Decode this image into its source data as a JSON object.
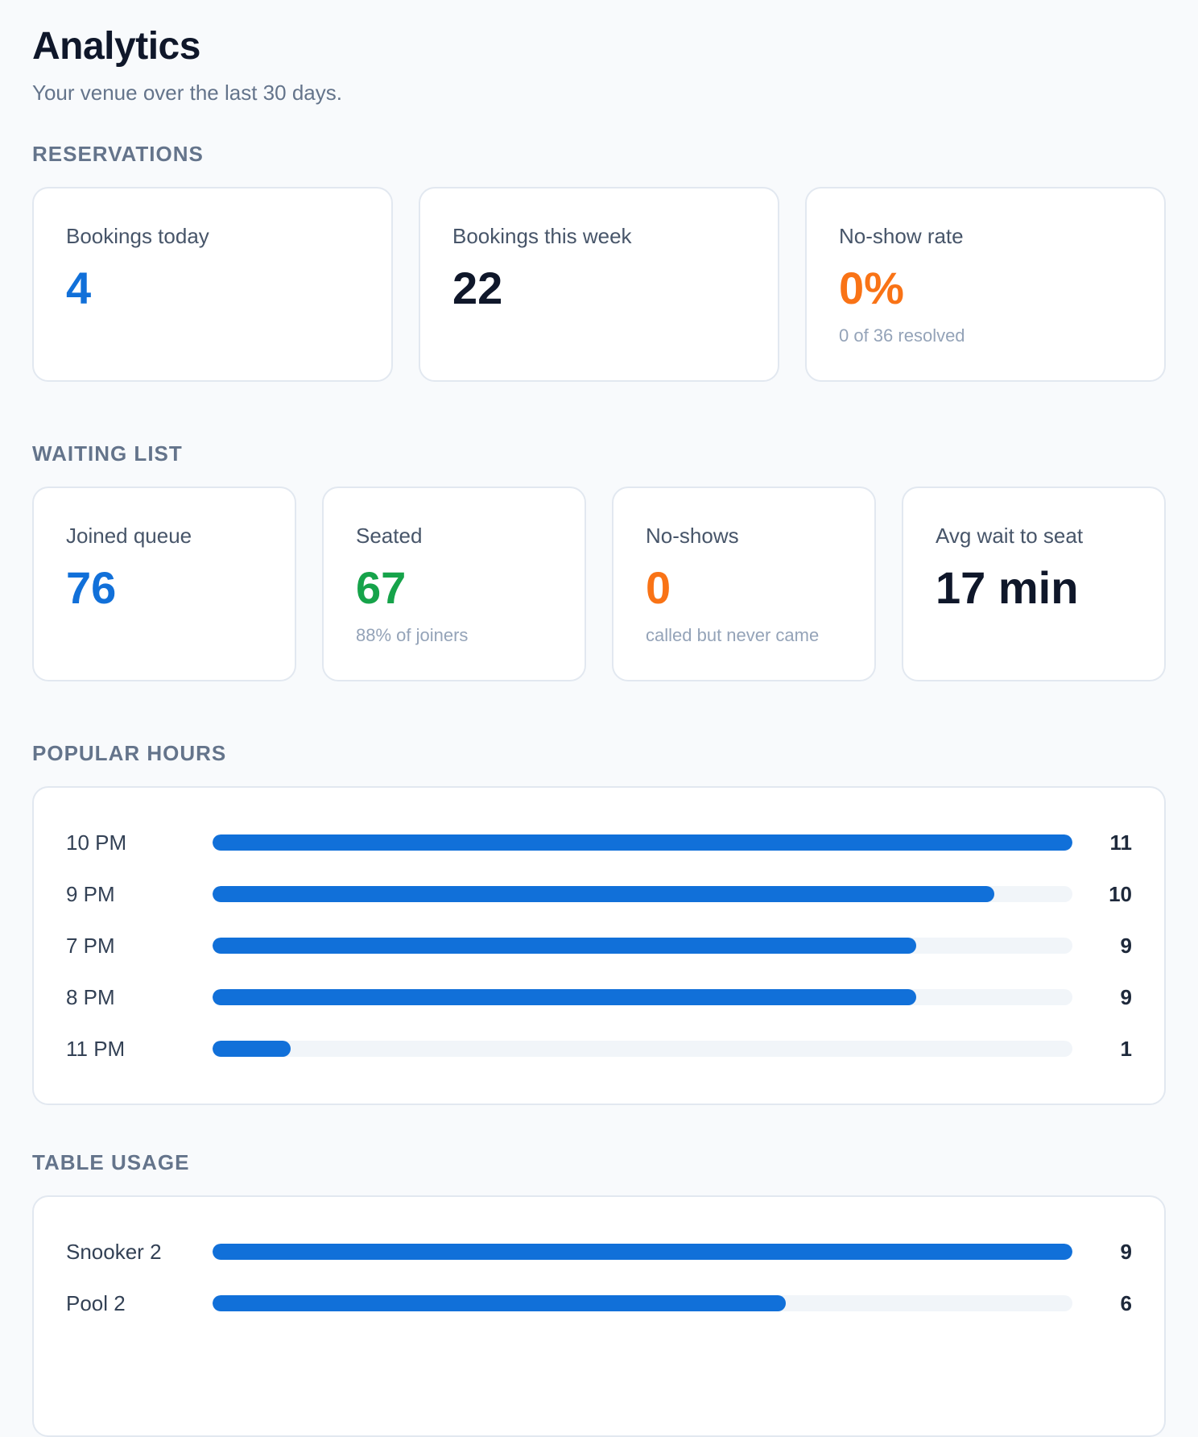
{
  "header": {
    "title": "Analytics",
    "subtitle": "Your venue over the last 30 days."
  },
  "colors": {
    "blue": "#1170d9",
    "dark": "#0f172a",
    "orange": "#f97316",
    "green": "#16a34a",
    "track": "#f1f5f9"
  },
  "reservations": {
    "title": "RESERVATIONS",
    "cards": [
      {
        "label": "Bookings today",
        "value": "4",
        "note": ""
      },
      {
        "label": "Bookings this week",
        "value": "22",
        "note": ""
      },
      {
        "label": "No-show rate",
        "value": "0%",
        "note": "0 of 36 resolved"
      }
    ]
  },
  "waiting_list": {
    "title": "WAITING LIST",
    "cards": [
      {
        "label": "Joined queue",
        "value": "76",
        "note": ""
      },
      {
        "label": "Seated",
        "value": "67",
        "note": "88% of joiners"
      },
      {
        "label": "No-shows",
        "value": "0",
        "note": "called but never came"
      },
      {
        "label": "Avg wait to seat",
        "value": "17 min",
        "note": ""
      }
    ]
  },
  "popular_hours": {
    "title": "POPULAR HOURS",
    "max": 11,
    "rows": [
      {
        "label": "10 PM",
        "value": 11
      },
      {
        "label": "9 PM",
        "value": 10
      },
      {
        "label": "7 PM",
        "value": 9
      },
      {
        "label": "8 PM",
        "value": 9
      },
      {
        "label": "11 PM",
        "value": 1
      }
    ]
  },
  "table_usage": {
    "title": "TABLE USAGE",
    "max": 9,
    "rows": [
      {
        "label": "Snooker 2",
        "value": 9
      },
      {
        "label": "Pool 2",
        "value": 6
      }
    ]
  }
}
